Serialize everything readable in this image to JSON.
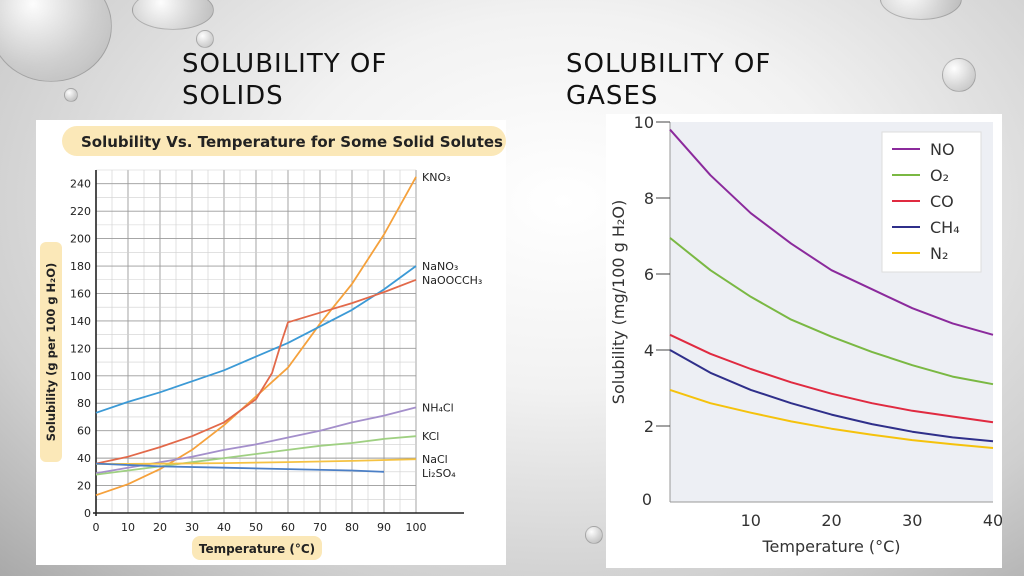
{
  "slide": {
    "left_heading": "SOLUBILITY OF\nSOLIDS",
    "right_heading": "SOLUBILITY OF\nGASES"
  },
  "chart_data": [
    {
      "type": "line",
      "title": "Solubility Vs. Temperature for Some Solid Solutes",
      "xlabel": "Temperature (°C)",
      "ylabel": "Solubility (g per 100 g H₂O)",
      "xlim": [
        0,
        100
      ],
      "ylim": [
        0,
        250
      ],
      "xticks": [
        "0",
        "10",
        "20",
        "30",
        "40",
        "50",
        "60",
        "70",
        "80",
        "90",
        "100"
      ],
      "yticks": [
        "0",
        "20",
        "40",
        "60",
        "80",
        "100",
        "120",
        "140",
        "160",
        "180",
        "200",
        "220",
        "240"
      ],
      "grid": true,
      "title_bg": "#fbe8b8",
      "series": [
        {
          "name": "KNO₃",
          "color": "#f5a13c",
          "x": [
            0,
            10,
            20,
            30,
            40,
            50,
            60,
            70,
            80,
            90,
            100
          ],
          "y": [
            13,
            21,
            32,
            46,
            64,
            85,
            106,
            138,
            167,
            203,
            245
          ]
        },
        {
          "name": "NaNO₃",
          "color": "#3c9ad6",
          "x": [
            0,
            10,
            20,
            30,
            40,
            50,
            60,
            70,
            80,
            90,
            100
          ],
          "y": [
            73,
            81,
            88,
            96,
            104,
            114,
            124,
            136,
            148,
            163,
            180
          ]
        },
        {
          "name": "NaOOCCH₃",
          "color": "#e2694a",
          "x": [
            0,
            10,
            20,
            30,
            40,
            50,
            55,
            58,
            60,
            70,
            80,
            90,
            100
          ],
          "y": [
            36,
            41,
            48,
            56,
            66,
            83,
            102,
            125,
            139,
            146,
            153,
            161,
            170
          ]
        },
        {
          "name": "NH₄Cl",
          "color": "#a48fcb",
          "x": [
            0,
            10,
            20,
            30,
            40,
            50,
            60,
            70,
            80,
            90,
            100
          ],
          "y": [
            29,
            33,
            37,
            41,
            46,
            50,
            55,
            60,
            66,
            71,
            77
          ]
        },
        {
          "name": "KCl",
          "color": "#9fd082",
          "x": [
            0,
            10,
            20,
            30,
            40,
            50,
            60,
            70,
            80,
            90,
            100
          ],
          "y": [
            28,
            31,
            34,
            37,
            40,
            43,
            46,
            49,
            51,
            54,
            56
          ]
        },
        {
          "name": "NaCl",
          "color": "#f5c242",
          "x": [
            0,
            20,
            40,
            60,
            80,
            100
          ],
          "y": [
            35.7,
            35.9,
            36.4,
            37.1,
            38.0,
            39.2
          ]
        },
        {
          "name": "Li₂SO₄",
          "color": "#4b7fc6",
          "x": [
            0,
            20,
            40,
            60,
            80,
            90
          ],
          "y": [
            36,
            34,
            33,
            32,
            31,
            30
          ]
        }
      ]
    },
    {
      "type": "line",
      "title": "",
      "xlabel": "Temperature (°C)",
      "ylabel": "Solubility (mg/100 g H₂O)",
      "xlim": [
        0,
        40
      ],
      "ylim": [
        0,
        10
      ],
      "xticks": [
        "10",
        "20",
        "30",
        "40"
      ],
      "yticks": [
        "0",
        "2",
        "4",
        "6",
        "8",
        "10"
      ],
      "legend": "top-right",
      "plot_bg": "#edeff4",
      "series": [
        {
          "name": "NO",
          "color": "#8b2a9c",
          "x": [
            0,
            5,
            10,
            15,
            20,
            25,
            30,
            35,
            40
          ],
          "y": [
            9.8,
            8.6,
            7.6,
            6.8,
            6.1,
            5.6,
            5.1,
            4.7,
            4.4
          ]
        },
        {
          "name": "O₂",
          "color": "#7ab843",
          "x": [
            0,
            5,
            10,
            15,
            20,
            25,
            30,
            35,
            40
          ],
          "y": [
            6.95,
            6.1,
            5.4,
            4.8,
            4.35,
            3.95,
            3.6,
            3.3,
            3.1
          ]
        },
        {
          "name": "CO",
          "color": "#e02a40",
          "x": [
            0,
            5,
            10,
            15,
            20,
            25,
            30,
            35,
            40
          ],
          "y": [
            4.4,
            3.9,
            3.5,
            3.15,
            2.85,
            2.6,
            2.4,
            2.25,
            2.1
          ]
        },
        {
          "name": "CH₄",
          "color": "#2f2f8a",
          "x": [
            0,
            5,
            10,
            15,
            20,
            25,
            30,
            35,
            40
          ],
          "y": [
            4.0,
            3.4,
            2.95,
            2.6,
            2.3,
            2.05,
            1.85,
            1.7,
            1.6
          ]
        },
        {
          "name": "N₂",
          "color": "#f5c20c",
          "x": [
            0,
            5,
            10,
            15,
            20,
            25,
            30,
            35,
            40
          ],
          "y": [
            2.95,
            2.6,
            2.35,
            2.12,
            1.93,
            1.77,
            1.63,
            1.52,
            1.42
          ]
        }
      ]
    }
  ]
}
